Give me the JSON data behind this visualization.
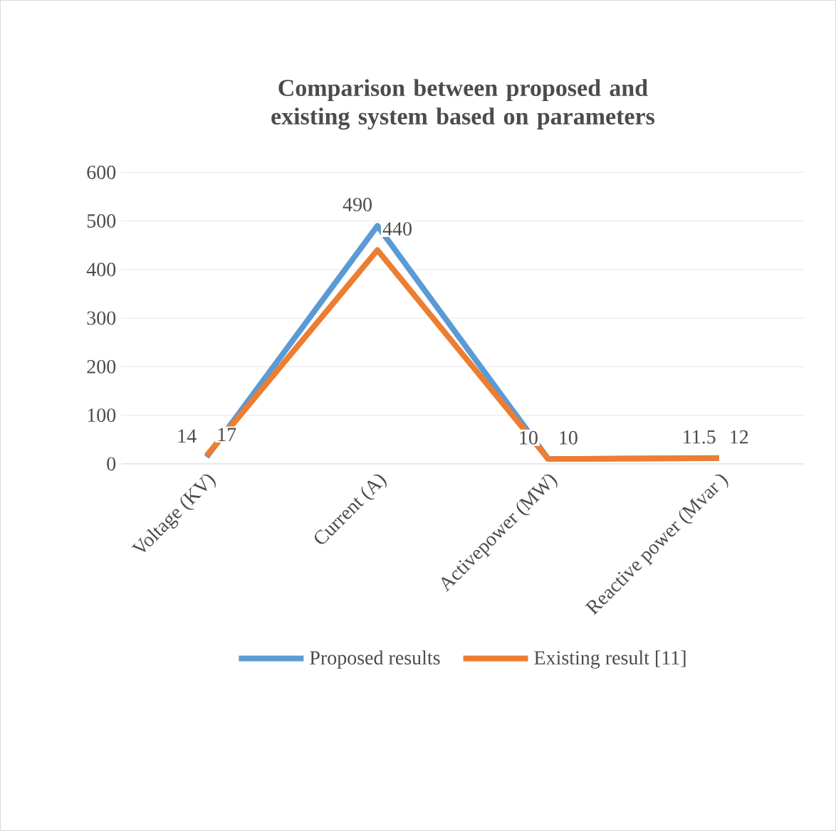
{
  "chart_data": {
    "type": "line",
    "title": "Comparison between proposed and existing system based on parameters",
    "categories": [
      "Voltage (KV)",
      "Current (A)",
      "Activepower (MW)",
      "Reactive power (Mvar )"
    ],
    "series": [
      {
        "name": "Proposed results",
        "color": "#5b9bd5",
        "values": [
          14,
          490,
          10,
          11.5
        ]
      },
      {
        "name": "Existing result [11]",
        "color": "#ed7d31",
        "values": [
          17,
          440,
          10,
          12
        ]
      }
    ],
    "ylim": [
      0,
      600
    ],
    "yticks": [
      0,
      100,
      200,
      300,
      400,
      500,
      600
    ],
    "grid": "y",
    "legend": "bottom",
    "data_labels": true,
    "marker": "none",
    "line_style": "solid"
  }
}
